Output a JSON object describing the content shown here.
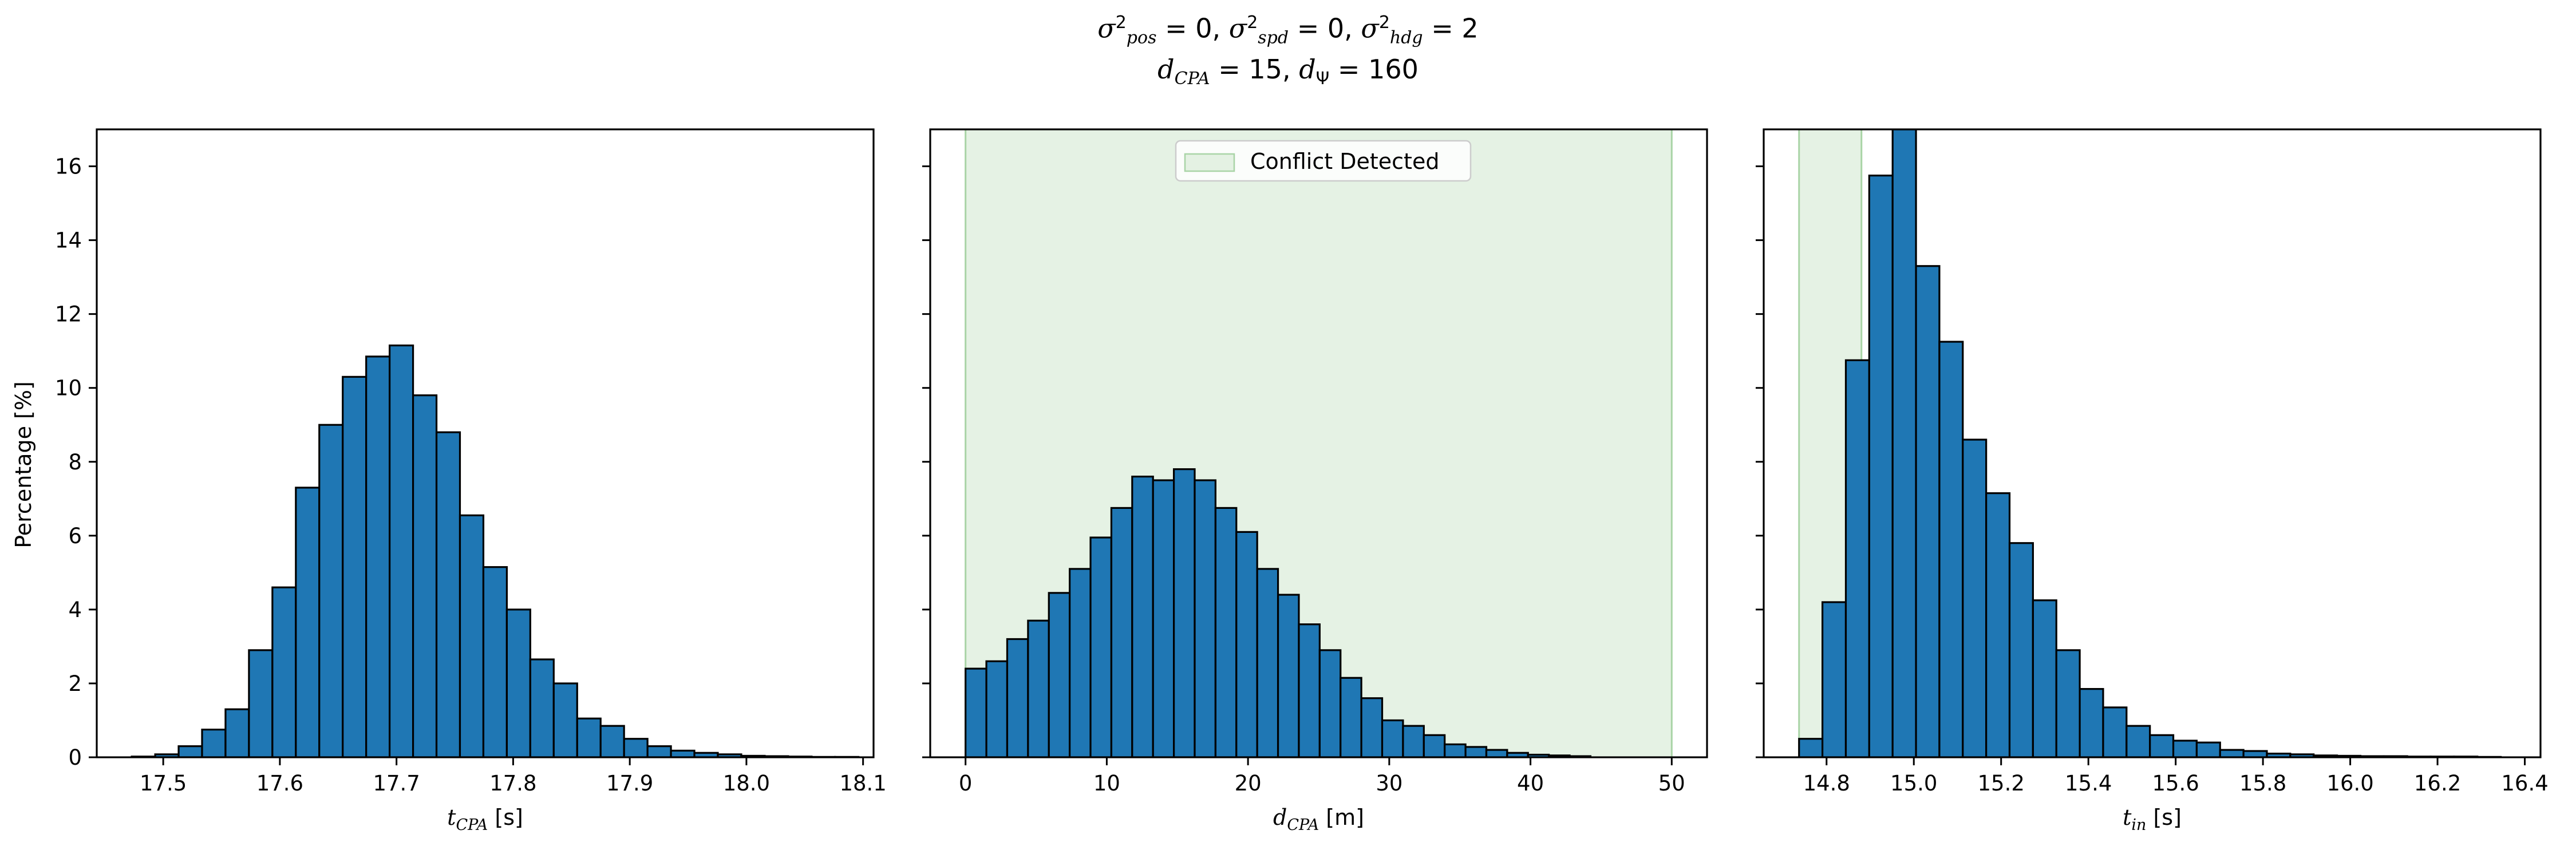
{
  "figure": {
    "title_line1": "σ²pos = 0, σ²spd = 0, σ²hdg = 2",
    "title_line2": "dCPA = 15, dΨ = 160",
    "shared_ylabel": "Percentage [%]"
  },
  "colors": {
    "bar_fill": "#1f77b4",
    "bar_edge": "#000000",
    "conflict_fill": "#d7ebd6",
    "conflict_edge": "#a9d4a6"
  },
  "chart_data": [
    {
      "type": "bar",
      "subtype": "histogram",
      "xlabel": "tCPA [s]",
      "ylabel": "Percentage [%]",
      "xlim": [
        17.443,
        18.109
      ],
      "ylim": [
        0,
        17
      ],
      "xticks": [
        17.5,
        17.6,
        17.7,
        17.8,
        17.9,
        18.0,
        18.1
      ],
      "xtick_labels": [
        "17.5",
        "17.6",
        "17.7",
        "17.8",
        "17.9",
        "18.0",
        "18.1"
      ],
      "yticks": [
        0,
        2,
        4,
        6,
        8,
        10,
        12,
        14,
        16
      ],
      "ytick_labels": [
        "0",
        "2",
        "4",
        "6",
        "8",
        "10",
        "12",
        "14",
        "16"
      ],
      "bin_start": 17.473,
      "bin_width": 0.0201,
      "values": [
        0.02,
        0.08,
        0.3,
        0.75,
        1.3,
        2.9,
        4.6,
        7.3,
        9.0,
        10.3,
        10.85,
        11.15,
        9.8,
        8.8,
        6.55,
        5.15,
        4.0,
        2.65,
        2.0,
        1.05,
        0.85,
        0.5,
        0.3,
        0.18,
        0.12,
        0.08,
        0.04,
        0.03,
        0.02,
        0.01,
        0.01
      ]
    },
    {
      "type": "bar",
      "subtype": "histogram",
      "xlabel": "dCPA [m]",
      "xlim": [
        -2.5,
        52.5
      ],
      "ylim": [
        0,
        17
      ],
      "xticks": [
        0,
        10,
        20,
        30,
        40,
        50
      ],
      "xtick_labels": [
        "0",
        "10",
        "20",
        "30",
        "40",
        "50"
      ],
      "yticks": [
        0,
        2,
        4,
        6,
        8,
        10,
        12,
        14,
        16
      ],
      "shaded_region": {
        "x0": 0,
        "x1": 50,
        "label": "Conflict Detected"
      },
      "legend": {
        "entries": [
          "Conflict Detected"
        ],
        "position": "upper center"
      },
      "bin_start": 0,
      "bin_width": 1.475,
      "values": [
        2.4,
        2.6,
        3.2,
        3.7,
        4.45,
        5.1,
        5.95,
        6.75,
        7.6,
        7.5,
        7.8,
        7.5,
        6.75,
        6.1,
        5.1,
        4.4,
        3.6,
        2.9,
        2.15,
        1.6,
        1.0,
        0.85,
        0.6,
        0.35,
        0.28,
        0.2,
        0.12,
        0.07,
        0.05,
        0.03
      ]
    },
    {
      "type": "bar",
      "subtype": "histogram",
      "xlabel": "tin [s]",
      "xlim": [
        14.656,
        16.436
      ],
      "ylim": [
        0,
        17
      ],
      "xticks": [
        14.8,
        15.0,
        15.2,
        15.4,
        15.6,
        15.8,
        16.0,
        16.2,
        16.4
      ],
      "xtick_labels": [
        "14.8",
        "15.0",
        "15.2",
        "15.4",
        "15.6",
        "15.8",
        "16.0",
        "16.2",
        "16.4"
      ],
      "yticks": [
        0,
        2,
        4,
        6,
        8,
        10,
        12,
        14,
        16
      ],
      "shaded_region": {
        "x0": 14.737,
        "x1": 14.88,
        "label": "Conflict Detected"
      },
      "bin_start": 14.737,
      "bin_width": 0.0536,
      "values": [
        0.5,
        4.2,
        10.75,
        15.75,
        17.0,
        13.3,
        11.25,
        8.6,
        7.15,
        5.8,
        4.25,
        2.9,
        1.85,
        1.35,
        0.85,
        0.6,
        0.45,
        0.4,
        0.2,
        0.17,
        0.1,
        0.08,
        0.05,
        0.04,
        0.03,
        0.03,
        0.02,
        0.02,
        0.02,
        0.01
      ]
    }
  ]
}
